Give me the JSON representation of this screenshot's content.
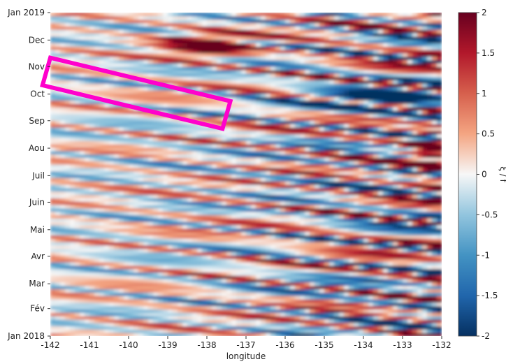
{
  "chart_data": {
    "type": "heatmap",
    "title": "",
    "xlabel": "longitude",
    "ylabel": "",
    "xlim": [
      -142,
      -132
    ],
    "x_ticks": [
      "-142",
      "-141",
      "-140",
      "-139",
      "-138",
      "-137",
      "-136",
      "-135",
      "-134",
      "-133",
      "-132"
    ],
    "ylim": [
      "2018-01-01",
      "2019-01-01"
    ],
    "y_ticks": [
      {
        "date": "2018-01-01",
        "label": "Jan 2018"
      },
      {
        "date": "2018-02-01",
        "label": "Fév"
      },
      {
        "date": "2018-03-01",
        "label": "Mar"
      },
      {
        "date": "2018-04-01",
        "label": "Avr"
      },
      {
        "date": "2018-05-01",
        "label": "Mai"
      },
      {
        "date": "2018-06-01",
        "label": "Juin"
      },
      {
        "date": "2018-07-01",
        "label": "Juil"
      },
      {
        "date": "2018-08-01",
        "label": "Aou"
      },
      {
        "date": "2018-09-01",
        "label": "Sep"
      },
      {
        "date": "2018-10-01",
        "label": "Oct"
      },
      {
        "date": "2018-11-01",
        "label": "Nov"
      },
      {
        "date": "2018-12-01",
        "label": "Dec"
      },
      {
        "date": "2019-01-01",
        "label": "Jan 2019"
      }
    ],
    "colorbar": {
      "label": "ξ / f",
      "range": [
        -2,
        2
      ],
      "ticks": [
        "-2",
        "-1.5",
        "-1",
        "-0.5",
        "0",
        "0.5",
        "1",
        "1.5",
        "2"
      ],
      "colormap": "RdBu_r",
      "colors": [
        "#053061",
        "#2166ac",
        "#4393c3",
        "#92c5de",
        "#f7f7f7",
        "#f4a582",
        "#d6604d",
        "#b2182b",
        "#67001f"
      ]
    },
    "annotation": {
      "shape": "rotated-rectangle",
      "color": "#ff00cc",
      "corners": [
        {
          "lon": -142.0,
          "date": "2018-11-11"
        },
        {
          "lon": -137.4,
          "date": "2018-09-23"
        },
        {
          "lon": -137.6,
          "date": "2018-08-23"
        },
        {
          "lon": -142.2,
          "date": "2018-10-11"
        }
      ]
    }
  }
}
